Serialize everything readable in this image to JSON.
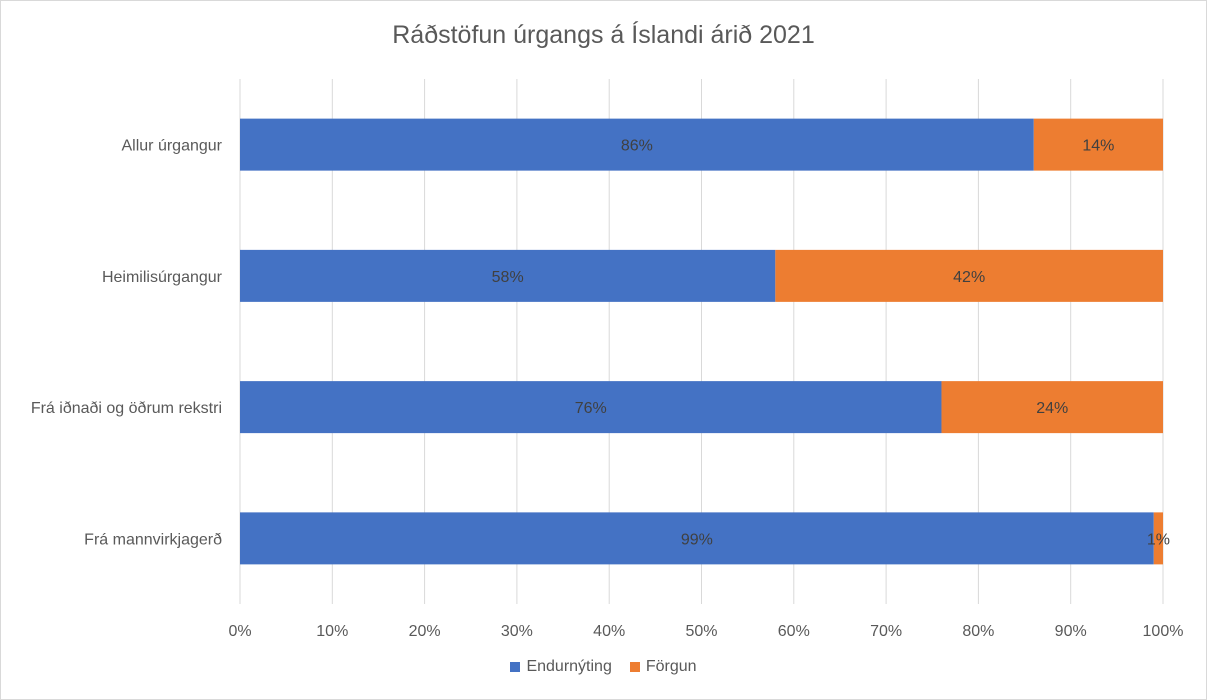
{
  "chart_data": {
    "type": "bar",
    "orientation": "horizontal",
    "stacked": "100%",
    "title": "Ráðstöfun úrgangs á Íslandi árið 2021",
    "categories": [
      "Allur úrgangur",
      "Heimilisúrgangur",
      "Frá iðnaði og öðrum rekstri",
      "Frá mannvirkjagerð"
    ],
    "series": [
      {
        "name": "Endurnýting",
        "color": "#4472c4",
        "values": [
          86,
          58,
          76,
          99
        ],
        "labels": [
          "86%",
          "58%",
          "76%",
          "99%"
        ]
      },
      {
        "name": "Förgun",
        "color": "#ed7d31",
        "values": [
          14,
          42,
          24,
          1
        ],
        "labels": [
          "14%",
          "42%",
          "24%",
          "1%"
        ]
      }
    ],
    "xlim": [
      0,
      100
    ],
    "xticks": [
      "0%",
      "10%",
      "20%",
      "30%",
      "40%",
      "50%",
      "60%",
      "70%",
      "80%",
      "90%",
      "100%"
    ],
    "grid": true,
    "legend_position": "bottom"
  }
}
